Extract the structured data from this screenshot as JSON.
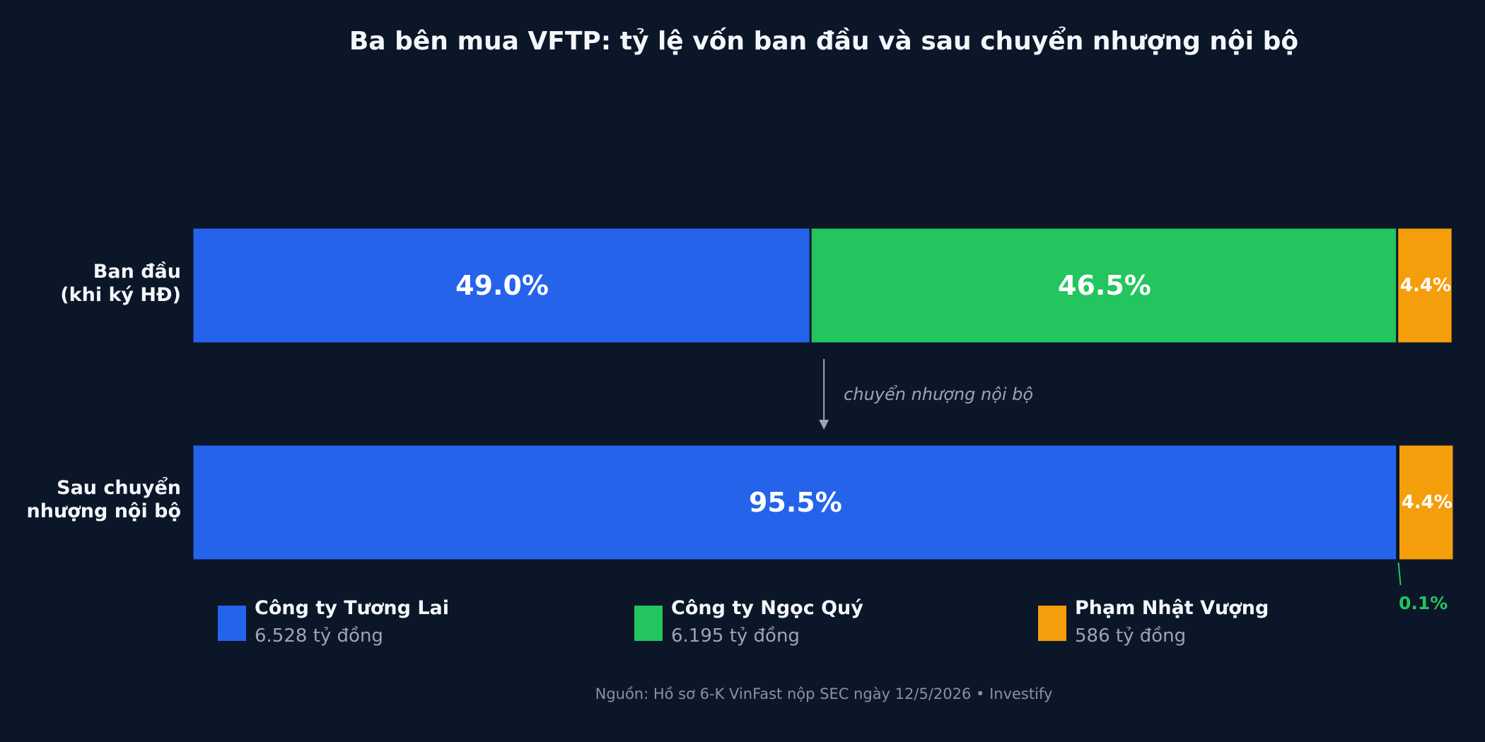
{
  "title": "Ba bên mua VFTP: tỷ lệ vốn ban đầu và sau chuyển nhượng nội bộ",
  "source": "Nguồn: Hồ sơ 6-K VinFast nộp SEC ngày 12/5/2026  •  Investify",
  "colors": {
    "background": "#0b1628",
    "Tuong_Lai": "#2563eb",
    "Ngoc_Quy": "#22c55e",
    "Pham_Nhat_Vuong": "#f59e0b",
    "annotation_line": "#22c55e",
    "arrow": "#9aa6b6"
  },
  "legend": [
    {
      "name": "Công ty Tương Lai",
      "value": "6.528 tỷ đồng",
      "color": "#2563eb"
    },
    {
      "name": "Công ty Ngọc Quý",
      "value": "6.195 tỷ đồng",
      "color": "#22c55e"
    },
    {
      "name": "Phạm Nhật Vượng",
      "value": "586 tỷ đồng",
      "color": "#f59e0b"
    }
  ],
  "chart_data": {
    "type": "bar",
    "orientation": "horizontal",
    "stacked": true,
    "title": "Ba bên mua VFTP: tỷ lệ vốn ban đầu và sau chuyển nhượng nội bộ",
    "categories": [
      "Ban đầu\n(khi ký HĐ)",
      "Sau chuyển\nnhượng nội bộ"
    ],
    "series": [
      {
        "name": "Công ty Tương Lai",
        "values": [
          49.0,
          95.5
        ],
        "labels": [
          "49.0%",
          "95.5%"
        ]
      },
      {
        "name": "Công ty Ngọc Quý",
        "values": [
          46.5,
          0.1
        ],
        "labels": [
          "46.5%",
          "0.1%"
        ]
      },
      {
        "name": "Phạm Nhật Vượng",
        "values": [
          4.4,
          4.4
        ],
        "labels": [
          "4.4%",
          "4.4%"
        ]
      }
    ],
    "xlim": [
      0,
      100
    ],
    "axes_visible": false,
    "grid": false,
    "transition_label": "chuyển nhượng nội bộ",
    "legend_position": "bottom"
  }
}
